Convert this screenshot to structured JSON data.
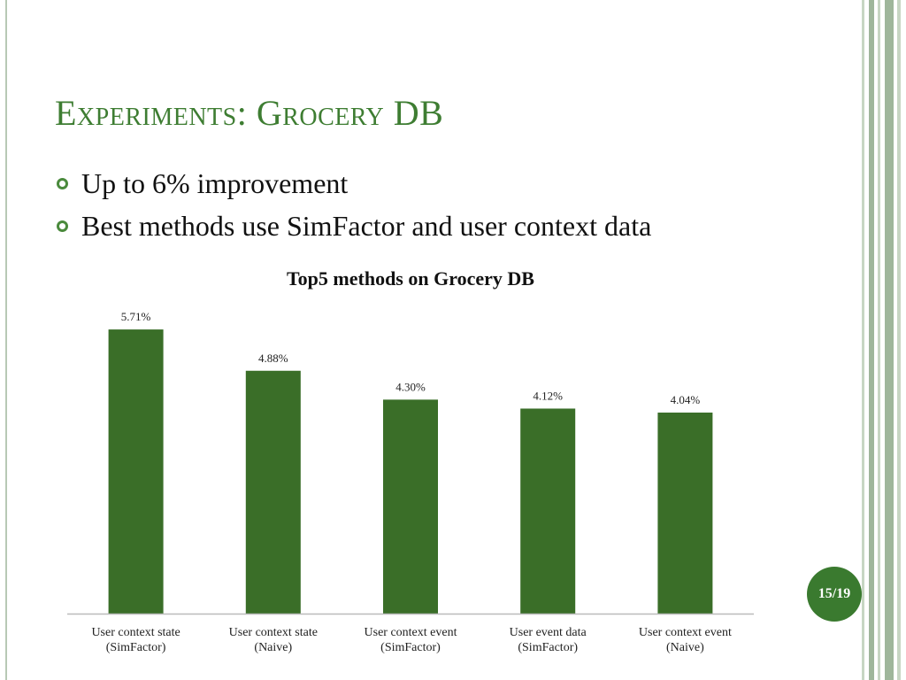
{
  "slide": {
    "title": "Experiments: Grocery DB",
    "bullets": [
      "Up to 6% improvement",
      "Best methods use SimFactor and user context data"
    ],
    "page_number": "15/19"
  },
  "colors": {
    "bar": "#3a6e28",
    "title": "#3e7d32",
    "badge": "#3a7a2f"
  },
  "chart_data": {
    "type": "bar",
    "title": "Top5 methods on Grocery DB",
    "categories": [
      [
        "User context state",
        "(SimFactor)"
      ],
      [
        "User context state",
        "(Naive)"
      ],
      [
        "User context event",
        "(SimFactor)"
      ],
      [
        "User event data",
        "(SimFactor)"
      ],
      [
        "User context event",
        "(Naive)"
      ]
    ],
    "values": [
      5.71,
      4.88,
      4.3,
      4.12,
      4.04
    ],
    "value_labels": [
      "5.71%",
      "4.88%",
      "4.30%",
      "4.12%",
      "4.04%"
    ],
    "xlabel": "",
    "ylabel": "",
    "ylim": [
      0,
      6.05
    ],
    "grid": false,
    "legend": "none"
  }
}
